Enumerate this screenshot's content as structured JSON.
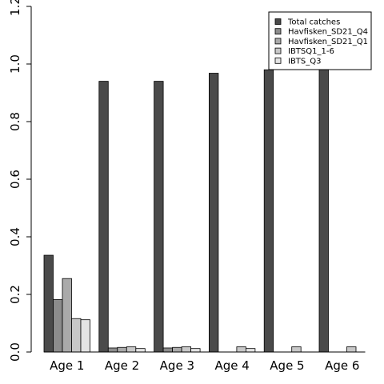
{
  "chart_data": {
    "type": "bar",
    "categories": [
      "Age 1",
      "Age 2",
      "Age 3",
      "Age 4",
      "Age 5",
      "Age 6"
    ],
    "series": [
      {
        "name": "Total catches",
        "color": "#4a4a4a",
        "values": [
          0.336,
          0.94,
          0.94,
          0.968,
          0.98,
          0.985
        ]
      },
      {
        "name": "Havfisken_SD21_Q4",
        "color": "#8c8c8c",
        "values": [
          0.182,
          0.014,
          0.014,
          0,
          0,
          0
        ]
      },
      {
        "name": "Havfisken_SD21_Q1",
        "color": "#aaaaaa",
        "values": [
          0.255,
          0.016,
          0.016,
          0,
          0,
          0
        ]
      },
      {
        "name": "IBTSQ1_1-6",
        "color": "#c8c8c8",
        "values": [
          0.116,
          0.018,
          0.018,
          0.018,
          0.018,
          0.018
        ]
      },
      {
        "name": "IBTS_Q3",
        "color": "#e4e4e4",
        "values": [
          0.112,
          0.012,
          0.012,
          0.012,
          0,
          0
        ]
      }
    ],
    "y_ticks": [
      "0.0",
      "0.2",
      "0.4",
      "0.6",
      "0.8",
      "1.0",
      "1.2"
    ],
    "ylim": [
      0,
      1.2
    ],
    "title": "",
    "xlabel": "",
    "ylabel": "",
    "legend_position": "top-right",
    "grid": false
  }
}
